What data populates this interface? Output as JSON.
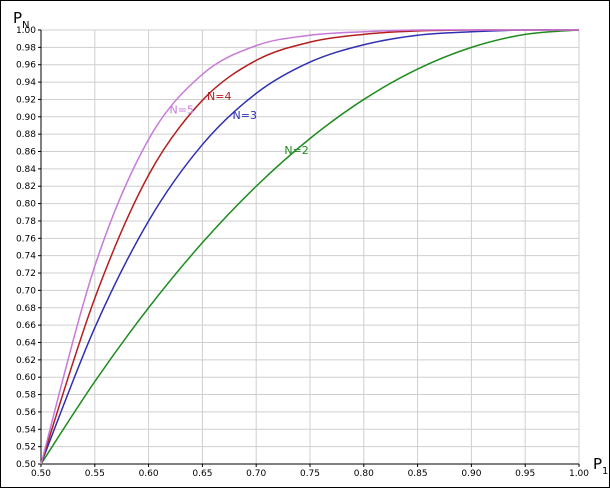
{
  "chart_data": {
    "type": "line",
    "title": "",
    "xlabel": {
      "main": "P",
      "sub": "1"
    },
    "ylabel": {
      "main": "P",
      "sub": "N"
    },
    "xlim": [
      0.5,
      1.0
    ],
    "ylim": [
      0.5,
      1.0
    ],
    "x_ticks": [
      "0.50",
      "0.55",
      "0.60",
      "0.65",
      "0.70",
      "0.75",
      "0.80",
      "0.85",
      "0.90",
      "0.95",
      "1.00"
    ],
    "y_ticks": [
      "0.50",
      "0.52",
      "0.54",
      "0.56",
      "0.58",
      "0.60",
      "0.62",
      "0.64",
      "0.66",
      "0.68",
      "0.70",
      "0.72",
      "0.74",
      "0.76",
      "0.78",
      "0.80",
      "0.82",
      "0.84",
      "0.86",
      "0.88",
      "0.90",
      "0.92",
      "0.94",
      "0.96",
      "0.98",
      "1.00"
    ],
    "grid": true,
    "legend": "inline labels",
    "x": [
      0.5,
      0.55,
      0.6,
      0.65,
      0.7,
      0.75,
      0.8,
      0.85,
      0.9,
      0.95,
      1.0
    ],
    "series": [
      {
        "name": "N=2",
        "color": "#1e8c1e",
        "values": [
          0.5,
          0.595,
          0.68,
          0.755,
          0.82,
          0.875,
          0.92,
          0.955,
          0.98,
          0.995,
          1.0
        ]
      },
      {
        "name": "N=3",
        "color": "#2f2fb4",
        "values": [
          0.5,
          0.657,
          0.78,
          0.868,
          0.927,
          0.963,
          0.983,
          0.994,
          0.998,
          1.0,
          1.0
        ]
      },
      {
        "name": "N=4",
        "color": "#b41e1e",
        "values": [
          0.5,
          0.691,
          0.833,
          0.919,
          0.965,
          0.986,
          0.995,
          0.999,
          1.0,
          1.0,
          1.0
        ]
      },
      {
        "name": "N=5",
        "color": "#c87ad8",
        "values": [
          0.5,
          0.728,
          0.874,
          0.949,
          0.982,
          0.994,
          0.998,
          1.0,
          1.0,
          1.0,
          1.0
        ]
      }
    ]
  }
}
